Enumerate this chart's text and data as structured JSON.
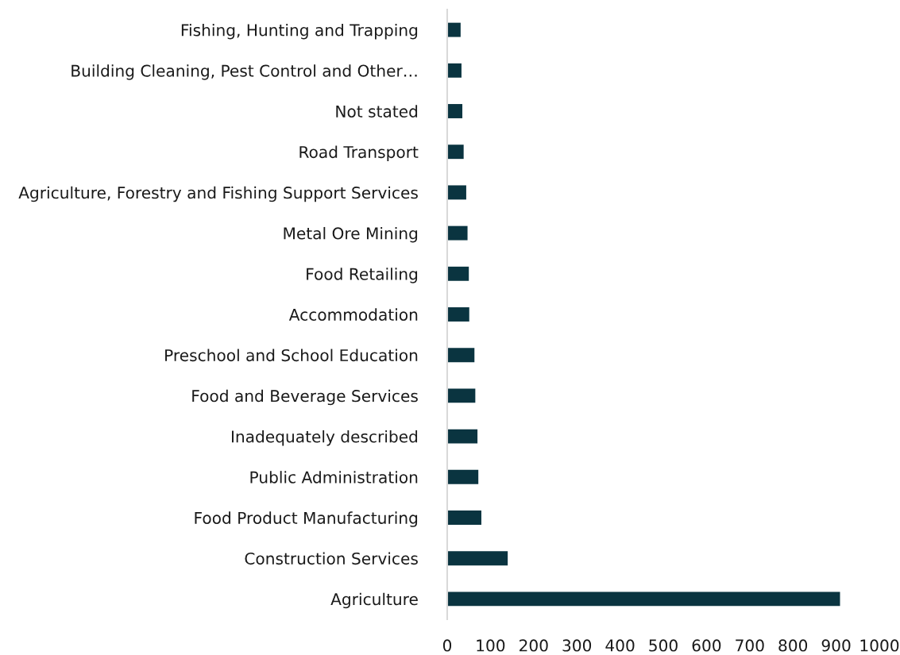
{
  "chart_data": {
    "type": "bar",
    "orientation": "horizontal",
    "categories": [
      "Fishing, Hunting and Trapping",
      "Building Cleaning, Pest Control and Other…",
      "Not stated",
      "Road Transport",
      "Agriculture, Forestry and Fishing Support Services",
      "Metal Ore Mining",
      "Food Retailing",
      "Accommodation",
      "Preschool and School Education",
      "Food and Beverage Services",
      "Inadequately described",
      "Public Administration",
      "Food Product Manufacturing",
      "Construction Services",
      "Agriculture"
    ],
    "values": [
      31,
      33,
      35,
      38,
      44,
      47,
      50,
      51,
      63,
      65,
      70,
      72,
      79,
      140,
      909
    ],
    "color": "#0a3440",
    "xlim": [
      0,
      1000
    ],
    "xticks": [
      0,
      100,
      200,
      300,
      400,
      500,
      600,
      700,
      800,
      900,
      1000
    ],
    "grid": false,
    "legend": false
  }
}
